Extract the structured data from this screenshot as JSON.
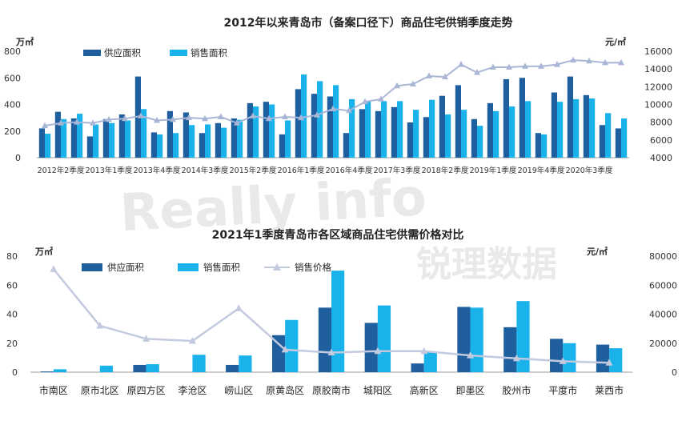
{
  "colors": {
    "supply": "#1f5f9e",
    "sales": "#19b2ea",
    "price_top": "#a9b6d6",
    "price_bottom": "#c3cadf",
    "axis": "#999999"
  },
  "watermark": {
    "latin": "Really info",
    "chinese": "锐理数据"
  },
  "chart_data": [
    {
      "type": "bar",
      "title": "2012年以来青岛市（备案口径下）商品住宅供销季度走势",
      "y_unit_left": "万㎡",
      "y_unit_right": "元/㎡",
      "ylim_left": [
        0,
        800
      ],
      "yticks_left": [
        "0",
        "200",
        "400",
        "600",
        "800"
      ],
      "ylim_right": [
        4000,
        16000
      ],
      "yticks_right": [
        "4000",
        "6000",
        "8000",
        "10000",
        "12000",
        "14000",
        "16000"
      ],
      "legend": [
        "供应面积",
        "销售面积"
      ],
      "x_tick_labels": [
        "2012年2季度",
        "2013年1季度",
        "2013年4季度",
        "2014年3季度",
        "2015年2季度",
        "2016年1季度",
        "2016年4季度",
        "2017年3季度",
        "2018年2季度",
        "2019年1季度",
        "2019年4季度",
        "2020年3季度"
      ],
      "x_tick_every": 3,
      "categories": [
        "2012Q1",
        "2012Q2",
        "2012Q3",
        "2012Q4",
        "2013Q1",
        "2013Q2",
        "2013Q3",
        "2013Q4",
        "2014Q1",
        "2014Q2",
        "2014Q3",
        "2014Q4",
        "2015Q1",
        "2015Q2",
        "2015Q3",
        "2015Q4",
        "2016Q1",
        "2016Q2",
        "2016Q3",
        "2016Q4",
        "2017Q1",
        "2017Q2",
        "2017Q3",
        "2017Q4",
        "2018Q1",
        "2018Q2",
        "2018Q3",
        "2018Q4",
        "2019Q1",
        "2019Q2",
        "2019Q3",
        "2019Q4",
        "2020Q1",
        "2020Q2",
        "2020Q3",
        "2020Q4",
        "2021Q1"
      ],
      "series": [
        {
          "name": "供应面积",
          "values": [
            220,
            345,
            295,
            160,
            290,
            325,
            610,
            190,
            350,
            340,
            185,
            260,
            295,
            410,
            420,
            175,
            515,
            480,
            460,
            185,
            365,
            350,
            380,
            265,
            305,
            465,
            545,
            290,
            410,
            590,
            600,
            185,
            490,
            610,
            470,
            245,
            220
          ]
        },
        {
          "name": "销售面积",
          "values": [
            180,
            290,
            330,
            250,
            260,
            280,
            365,
            175,
            185,
            245,
            250,
            225,
            285,
            385,
            400,
            280,
            625,
            575,
            545,
            440,
            420,
            425,
            425,
            360,
            435,
            325,
            360,
            240,
            350,
            385,
            425,
            175,
            420,
            440,
            445,
            335,
            295
          ]
        },
        {
          "name": "销售价格",
          "axis": "right",
          "values": [
            7600,
            7900,
            8000,
            7900,
            8300,
            8400,
            8700,
            8200,
            8300,
            8500,
            8400,
            8600,
            7900,
            8700,
            8400,
            8600,
            8500,
            8800,
            9500,
            9300,
            10300,
            10600,
            12100,
            12300,
            13200,
            13100,
            14500,
            13600,
            14200,
            14200,
            14300,
            14300,
            14500,
            15000,
            14900,
            14700,
            14700
          ]
        }
      ]
    },
    {
      "type": "bar",
      "title": "2021年1季度青岛市各区域商品住宅供需价格对比",
      "y_unit_left": "万㎡",
      "y_unit_right": "元/㎡",
      "ylim_left": [
        0,
        80
      ],
      "yticks_left": [
        "0",
        "20",
        "40",
        "60",
        "80"
      ],
      "ylim_right": [
        0,
        80000
      ],
      "yticks_right": [
        "0",
        "20000",
        "40000",
        "60000",
        "80000"
      ],
      "legend": [
        "供应面积",
        "销售面积",
        "销售价格"
      ],
      "categories": [
        "市南区",
        "原市北区",
        "原四方区",
        "李沧区",
        "崂山区",
        "原黄岛区",
        "原胶南市",
        "城阳区",
        "高新区",
        "即墨区",
        "胶州市",
        "平度市",
        "莱西市"
      ],
      "series": [
        {
          "name": "供应面积",
          "values": [
            0.5,
            0,
            5,
            0,
            5,
            25.5,
            44.5,
            34,
            6,
            45,
            31,
            23,
            19
          ]
        },
        {
          "name": "销售面积",
          "values": [
            2,
            4.5,
            5.5,
            12,
            11.5,
            36,
            70,
            46,
            13.5,
            44.5,
            49,
            20,
            16.5
          ]
        },
        {
          "name": "销售价格",
          "axis": "right",
          "values": [
            71000,
            32000,
            23000,
            21500,
            44000,
            15500,
            13500,
            14500,
            14500,
            11500,
            9500,
            7500,
            6500
          ]
        }
      ]
    }
  ]
}
